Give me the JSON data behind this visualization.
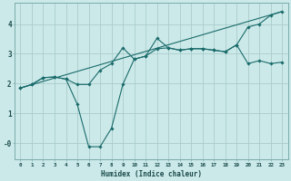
{
  "xlabel": "Humidex (Indice chaleur)",
  "background_color": "#cce9e9",
  "grid_color": "#aacccc",
  "line_color": "#1a6b6b",
  "x_min": -0.5,
  "x_max": 23.5,
  "y_min": -0.55,
  "y_max": 4.7,
  "line1_x": [
    0,
    1,
    2,
    3,
    4,
    5,
    6,
    7,
    8,
    9,
    10,
    11,
    12,
    13,
    14,
    15,
    16,
    17,
    18,
    19,
    20,
    21,
    22,
    23
  ],
  "line1_y": [
    1.85,
    1.97,
    2.2,
    2.22,
    2.15,
    1.97,
    1.97,
    2.45,
    2.67,
    3.2,
    2.82,
    2.92,
    3.17,
    3.2,
    3.12,
    3.17,
    3.17,
    3.12,
    3.07,
    3.3,
    3.9,
    4.0,
    4.3,
    4.42
  ],
  "line2_x": [
    0,
    1,
    2,
    3,
    4,
    5,
    6,
    7,
    8,
    9,
    10,
    11,
    12,
    13,
    14,
    15,
    16,
    17,
    18,
    19,
    20,
    21,
    22,
    23
  ],
  "line2_y": [
    1.85,
    1.97,
    2.2,
    2.22,
    2.15,
    1.3,
    -0.12,
    -0.12,
    0.5,
    1.97,
    2.82,
    2.92,
    3.52,
    3.2,
    3.12,
    3.17,
    3.17,
    3.12,
    3.07,
    3.3,
    2.67,
    2.77,
    2.67,
    2.72
  ],
  "line3_x": [
    0,
    23
  ],
  "line3_y": [
    1.85,
    4.42
  ]
}
